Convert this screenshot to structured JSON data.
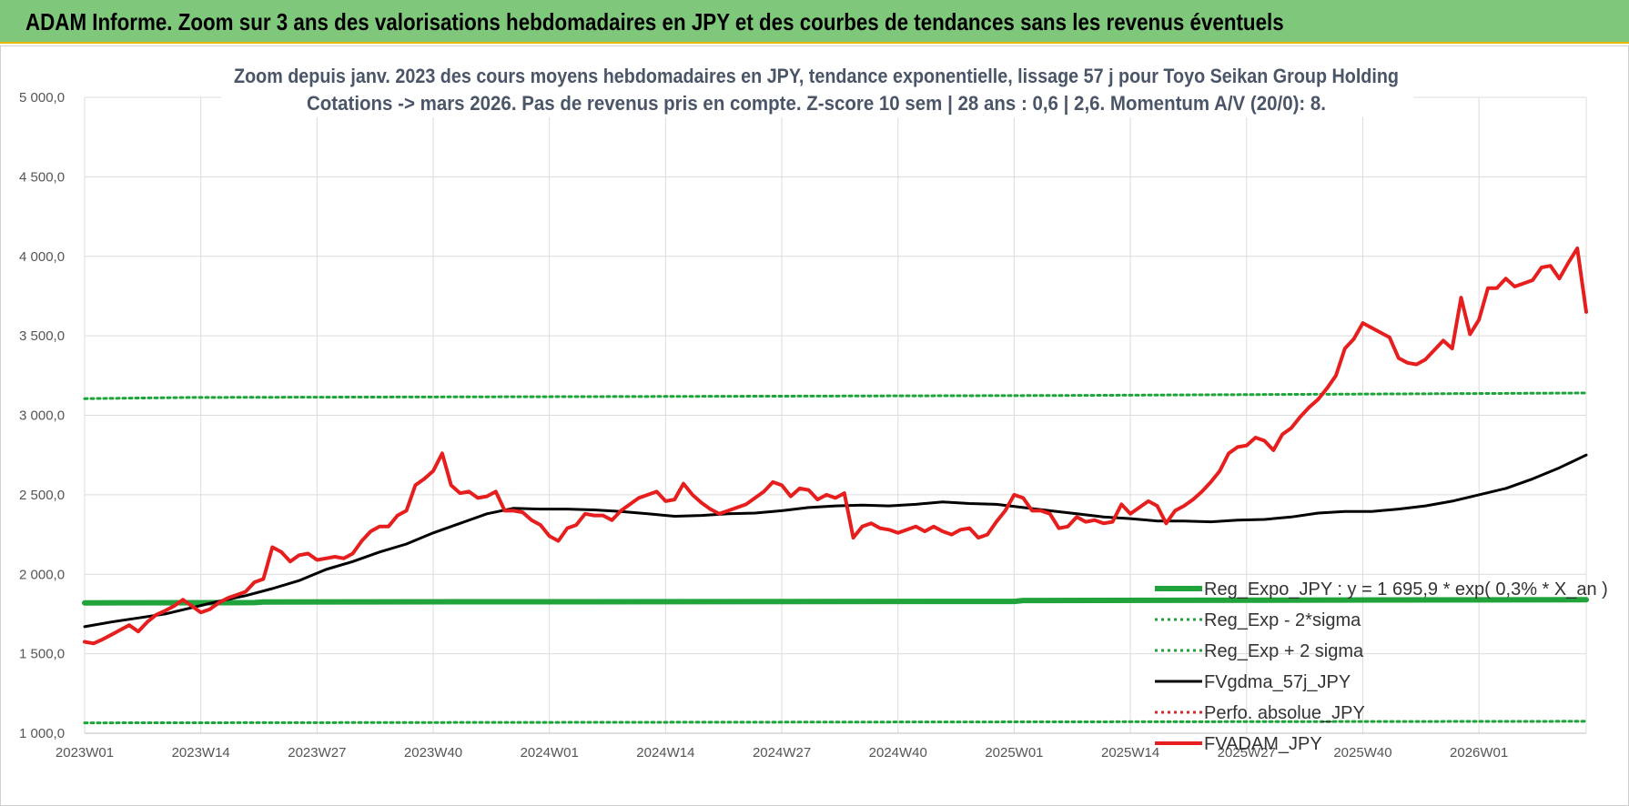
{
  "header": {
    "title": "ADAM Informe. Zoom sur 3 ans des valorisations hebdomadaires en JPY et des courbes de tendances sans les revenus éventuels"
  },
  "chart_data": {
    "type": "line",
    "title_line1": "Zoom depuis janv. 2023 des cours moyens hebdomadaires en JPY, tendance exponentielle, lissage 57 j pour Toyo Seikan Group Holding",
    "title_line2": "Cotations -> mars 2026. Pas de revenus pris en compte. Z-score 10 sem | 28 ans : 0,6 | 2,6. Momentum A/V (20/0): 8.",
    "ylim": [
      1000,
      5000
    ],
    "y_ticks": [
      "1 000,0",
      "1 500,0",
      "2 000,0",
      "2 500,0",
      "3 000,0",
      "3 500,0",
      "4 000,0",
      "4 500,0",
      "5 000,0"
    ],
    "y_tick_values": [
      1000,
      1500,
      2000,
      2500,
      3000,
      3500,
      4000,
      4500,
      5000
    ],
    "x_ticks": [
      "2023W01",
      "2023W14",
      "2023W27",
      "2023W40",
      "2024W01",
      "2024W14",
      "2024W27",
      "2024W40",
      "2025W01",
      "2025W14",
      "2025W27",
      "2025W40",
      "2026W01"
    ],
    "x_tick_index": [
      0,
      13,
      26,
      39,
      52,
      65,
      78,
      91,
      104,
      117,
      130,
      143,
      156
    ],
    "x_count": 169,
    "grid": true,
    "legend_position": "bottom-right",
    "series": [
      {
        "key": "reg",
        "name": "Reg_Expo_JPY : y = 1 695,9 * exp( 0,3% *  X_an )",
        "color": "#1fa33a",
        "style": "solid-thick",
        "points": [
          [
            0,
            1820
          ],
          [
            19,
            1822
          ],
          [
            20,
            1826
          ],
          [
            104,
            1829
          ],
          [
            105,
            1835
          ],
          [
            168,
            1840
          ]
        ]
      },
      {
        "key": "minus2",
        "name": "Reg_Exp - 2*sigma",
        "color": "#1fa33a",
        "style": "dotted",
        "points": [
          [
            0,
            1065
          ],
          [
            168,
            1075
          ]
        ]
      },
      {
        "key": "plus2",
        "name": "Reg_Exp + 2 sigma",
        "color": "#1fa33a",
        "style": "dotted",
        "points": [
          [
            0,
            3105
          ],
          [
            12,
            3112
          ],
          [
            60,
            3118
          ],
          [
            110,
            3125
          ],
          [
            168,
            3140
          ]
        ]
      },
      {
        "key": "fvgdma",
        "name": "FVgdma_57j_JPY",
        "color": "#000000",
        "style": "solid",
        "points": [
          [
            0,
            1670
          ],
          [
            3,
            1700
          ],
          [
            6,
            1725
          ],
          [
            9,
            1750
          ],
          [
            12,
            1790
          ],
          [
            15,
            1830
          ],
          [
            18,
            1865
          ],
          [
            21,
            1910
          ],
          [
            24,
            1960
          ],
          [
            27,
            2030
          ],
          [
            30,
            2080
          ],
          [
            33,
            2140
          ],
          [
            36,
            2190
          ],
          [
            39,
            2260
          ],
          [
            42,
            2320
          ],
          [
            45,
            2380
          ],
          [
            48,
            2415
          ],
          [
            51,
            2410
          ],
          [
            54,
            2410
          ],
          [
            57,
            2405
          ],
          [
            60,
            2395
          ],
          [
            63,
            2380
          ],
          [
            66,
            2365
          ],
          [
            69,
            2370
          ],
          [
            72,
            2380
          ],
          [
            75,
            2385
          ],
          [
            78,
            2400
          ],
          [
            81,
            2420
          ],
          [
            84,
            2430
          ],
          [
            87,
            2435
          ],
          [
            90,
            2430
          ],
          [
            93,
            2440
          ],
          [
            96,
            2455
          ],
          [
            99,
            2445
          ],
          [
            102,
            2440
          ],
          [
            105,
            2420
          ],
          [
            108,
            2400
          ],
          [
            111,
            2380
          ],
          [
            114,
            2360
          ],
          [
            117,
            2350
          ],
          [
            120,
            2335
          ],
          [
            123,
            2335
          ],
          [
            126,
            2330
          ],
          [
            129,
            2340
          ],
          [
            132,
            2345
          ],
          [
            135,
            2360
          ],
          [
            138,
            2385
          ],
          [
            141,
            2395
          ],
          [
            144,
            2395
          ],
          [
            147,
            2410
          ],
          [
            150,
            2430
          ],
          [
            153,
            2460
          ],
          [
            156,
            2500
          ],
          [
            159,
            2540
          ],
          [
            162,
            2600
          ],
          [
            165,
            2670
          ],
          [
            168,
            2750
          ]
        ]
      },
      {
        "key": "perfo",
        "name": "Perfo. absolue_JPY",
        "color": "#d9262b",
        "style": "dotted",
        "points": []
      },
      {
        "key": "fvadam",
        "name": "FVADAM_JPY",
        "color": "#e61e1e",
        "style": "solid-thick",
        "points": [
          [
            0,
            1575
          ],
          [
            1,
            1565
          ],
          [
            2,
            1590
          ],
          [
            3,
            1620
          ],
          [
            4,
            1650
          ],
          [
            5,
            1680
          ],
          [
            6,
            1640
          ],
          [
            7,
            1700
          ],
          [
            8,
            1745
          ],
          [
            9,
            1770
          ],
          [
            10,
            1800
          ],
          [
            11,
            1840
          ],
          [
            12,
            1800
          ],
          [
            13,
            1760
          ],
          [
            14,
            1780
          ],
          [
            15,
            1820
          ],
          [
            16,
            1850
          ],
          [
            17,
            1870
          ],
          [
            18,
            1890
          ],
          [
            19,
            1950
          ],
          [
            20,
            1970
          ],
          [
            21,
            2170
          ],
          [
            22,
            2140
          ],
          [
            23,
            2080
          ],
          [
            24,
            2120
          ],
          [
            25,
            2130
          ],
          [
            26,
            2090
          ],
          [
            27,
            2100
          ],
          [
            28,
            2110
          ],
          [
            29,
            2100
          ],
          [
            30,
            2130
          ],
          [
            31,
            2210
          ],
          [
            32,
            2270
          ],
          [
            33,
            2300
          ],
          [
            34,
            2300
          ],
          [
            35,
            2370
          ],
          [
            36,
            2400
          ],
          [
            37,
            2560
          ],
          [
            38,
            2600
          ],
          [
            39,
            2650
          ],
          [
            40,
            2760
          ],
          [
            41,
            2560
          ],
          [
            42,
            2510
          ],
          [
            43,
            2520
          ],
          [
            44,
            2480
          ],
          [
            45,
            2490
          ],
          [
            46,
            2520
          ],
          [
            47,
            2400
          ],
          [
            48,
            2400
          ],
          [
            49,
            2390
          ],
          [
            50,
            2340
          ],
          [
            51,
            2310
          ],
          [
            52,
            2240
          ],
          [
            53,
            2210
          ],
          [
            54,
            2290
          ],
          [
            55,
            2310
          ],
          [
            56,
            2380
          ],
          [
            57,
            2370
          ],
          [
            58,
            2370
          ],
          [
            59,
            2340
          ],
          [
            60,
            2400
          ],
          [
            61,
            2440
          ],
          [
            62,
            2480
          ],
          [
            63,
            2500
          ],
          [
            64,
            2520
          ],
          [
            65,
            2460
          ],
          [
            66,
            2470
          ],
          [
            67,
            2570
          ],
          [
            68,
            2500
          ],
          [
            69,
            2450
          ],
          [
            70,
            2410
          ],
          [
            71,
            2380
          ],
          [
            72,
            2400
          ],
          [
            73,
            2420
          ],
          [
            74,
            2440
          ],
          [
            75,
            2480
          ],
          [
            76,
            2520
          ],
          [
            77,
            2580
          ],
          [
            78,
            2560
          ],
          [
            79,
            2490
          ],
          [
            80,
            2540
          ],
          [
            81,
            2530
          ],
          [
            82,
            2470
          ],
          [
            83,
            2500
          ],
          [
            84,
            2480
          ],
          [
            85,
            2510
          ],
          [
            86,
            2230
          ],
          [
            87,
            2300
          ],
          [
            88,
            2320
          ],
          [
            89,
            2290
          ],
          [
            90,
            2280
          ],
          [
            91,
            2260
          ],
          [
            92,
            2280
          ],
          [
            93,
            2300
          ],
          [
            94,
            2270
          ],
          [
            95,
            2300
          ],
          [
            96,
            2270
          ],
          [
            97,
            2250
          ],
          [
            98,
            2280
          ],
          [
            99,
            2290
          ],
          [
            100,
            2230
          ],
          [
            101,
            2250
          ],
          [
            102,
            2330
          ],
          [
            103,
            2400
          ],
          [
            104,
            2500
          ],
          [
            105,
            2480
          ],
          [
            106,
            2400
          ],
          [
            107,
            2400
          ],
          [
            108,
            2380
          ],
          [
            109,
            2290
          ],
          [
            110,
            2300
          ],
          [
            111,
            2360
          ],
          [
            112,
            2330
          ],
          [
            113,
            2340
          ],
          [
            114,
            2320
          ],
          [
            115,
            2330
          ],
          [
            116,
            2440
          ],
          [
            117,
            2380
          ],
          [
            118,
            2420
          ],
          [
            119,
            2460
          ],
          [
            120,
            2430
          ],
          [
            121,
            2320
          ],
          [
            122,
            2400
          ],
          [
            123,
            2430
          ],
          [
            124,
            2470
          ],
          [
            125,
            2520
          ],
          [
            126,
            2580
          ],
          [
            127,
            2650
          ],
          [
            128,
            2760
          ],
          [
            129,
            2800
          ],
          [
            130,
            2810
          ],
          [
            131,
            2860
          ],
          [
            132,
            2840
          ],
          [
            133,
            2780
          ],
          [
            134,
            2880
          ],
          [
            135,
            2920
          ],
          [
            136,
            2990
          ],
          [
            137,
            3050
          ],
          [
            138,
            3100
          ],
          [
            139,
            3170
          ],
          [
            140,
            3250
          ],
          [
            141,
            3420
          ],
          [
            142,
            3480
          ],
          [
            143,
            3580
          ],
          [
            144,
            3550
          ],
          [
            145,
            3520
          ],
          [
            146,
            3490
          ],
          [
            147,
            3360
          ],
          [
            148,
            3330
          ],
          [
            149,
            3320
          ],
          [
            150,
            3350
          ],
          [
            151,
            3410
          ],
          [
            152,
            3470
          ],
          [
            153,
            3420
          ],
          [
            154,
            3740
          ],
          [
            155,
            3510
          ],
          [
            156,
            3600
          ],
          [
            157,
            3800
          ],
          [
            158,
            3800
          ],
          [
            159,
            3860
          ],
          [
            160,
            3810
          ],
          [
            161,
            3830
          ],
          [
            162,
            3850
          ],
          [
            163,
            3930
          ],
          [
            164,
            3940
          ],
          [
            165,
            3860
          ],
          [
            166,
            3960
          ],
          [
            167,
            4050
          ],
          [
            168,
            3650
          ]
        ]
      }
    ]
  }
}
